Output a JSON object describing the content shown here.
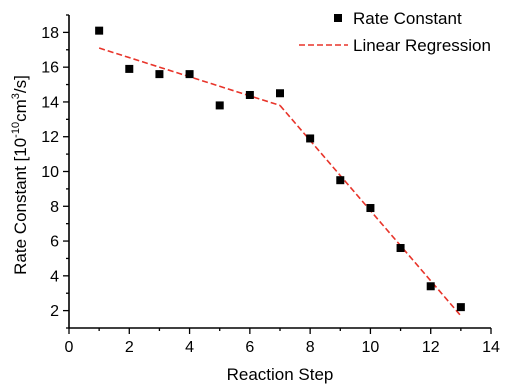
{
  "chart_data": {
    "type": "scatter",
    "xlabel": "Reaction Step",
    "ylabel": "Rate Constant [10",
    "ylabel_exp1": "-10",
    "ylabel_mid": "cm",
    "ylabel_exp2": "3",
    "ylabel_end": "/s]",
    "xlim": [
      0,
      14
    ],
    "ylim": [
      1,
      19
    ],
    "xticks": [
      0,
      2,
      4,
      6,
      8,
      10,
      12,
      14
    ],
    "yticks": [
      2,
      4,
      6,
      8,
      10,
      12,
      14,
      16,
      18
    ],
    "legend_position": "top-right",
    "grid": false,
    "series": [
      {
        "name": "Rate Constant",
        "kind": "scatter",
        "color": "#000000",
        "marker": "square",
        "x": [
          1,
          2,
          3,
          4,
          5,
          6,
          7,
          8,
          9,
          10,
          11,
          12,
          13
        ],
        "y": [
          18.1,
          15.9,
          15.6,
          15.6,
          13.8,
          14.4,
          14.5,
          11.9,
          9.5,
          7.9,
          5.6,
          3.4,
          2.2
        ]
      },
      {
        "name": "Linear Regression",
        "kind": "line",
        "color": "#e8342a",
        "dash": "dashed",
        "segments": [
          {
            "x": [
              1,
              7
            ],
            "y": [
              17.1,
              13.8
            ]
          },
          {
            "x": [
              7,
              13
            ],
            "y": [
              13.8,
              1.7
            ]
          }
        ]
      }
    ]
  }
}
